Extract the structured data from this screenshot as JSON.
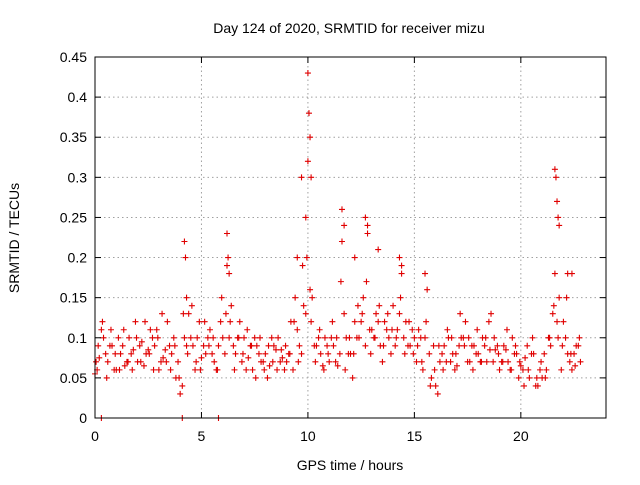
{
  "chart_data": {
    "type": "scatter",
    "title": "Day 124 of 2020, SRMTID for receiver mizu",
    "xlabel": "GPS time / hours",
    "ylabel": "SRMTID / TECUs",
    "xlim": [
      0,
      24
    ],
    "ylim": [
      0,
      0.45
    ],
    "xticks": [
      0,
      5,
      10,
      15,
      20
    ],
    "xtick_labels": [
      "0",
      "5",
      "10",
      "15",
      "20"
    ],
    "yticks": [
      0,
      0.05,
      0.1,
      0.15,
      0.2,
      0.25,
      0.3,
      0.35,
      0.4,
      0.45
    ],
    "ytick_labels": [
      "0",
      "0.05",
      "0.1",
      "0.15",
      "0.2",
      "0.25",
      "0.3",
      "0.35",
      "0.4",
      "0.45"
    ],
    "grid": true,
    "marker": "+",
    "color": "#e00000",
    "series": [
      {
        "name": "SRMTID",
        "x": [
          0.0,
          0.2,
          0.4,
          0.6,
          0.8,
          1.0,
          1.2,
          1.4,
          1.6,
          1.8,
          2.0,
          2.2,
          2.4,
          2.6,
          2.8,
          3.0,
          3.2,
          3.4,
          3.6,
          3.8,
          4.0,
          4.2,
          4.4,
          4.6,
          4.8,
          5.0,
          5.2,
          5.4,
          5.6,
          5.8,
          6.0,
          6.2,
          6.4,
          6.6,
          6.8,
          7.0,
          7.2,
          7.4,
          7.6,
          7.8,
          8.0,
          8.2,
          8.4,
          8.6,
          8.8,
          9.0,
          9.2,
          9.4,
          9.6,
          9.8,
          10.0,
          10.2,
          10.4,
          10.6,
          10.8,
          11.0,
          11.2,
          11.4,
          11.6,
          11.8,
          12.0,
          12.2,
          12.4,
          12.6,
          12.8,
          13.0,
          13.2,
          13.4,
          13.6,
          13.8,
          14.0,
          14.2,
          14.4,
          14.6,
          14.8,
          15.0,
          15.2,
          15.4,
          15.6,
          15.8,
          16.0,
          16.2,
          16.4,
          16.6,
          16.8,
          17.0,
          17.2,
          17.4,
          17.6,
          17.8,
          18.0,
          18.2,
          18.4,
          18.6,
          18.8,
          19.0,
          19.2,
          19.4,
          19.6,
          19.8,
          20.0,
          20.2,
          20.4,
          20.6,
          20.8,
          21.0,
          21.2,
          21.4,
          21.6,
          21.8,
          22.0,
          22.2,
          22.4,
          22.6,
          22.8,
          0.05,
          0.15,
          0.35,
          0.55,
          0.75,
          0.95,
          1.15,
          1.35,
          1.55,
          1.75,
          1.95,
          2.15,
          2.35,
          2.55,
          2.75,
          2.95,
          3.15,
          3.35,
          3.55,
          3.75,
          3.95,
          4.15,
          4.35,
          4.55,
          4.75,
          4.95,
          5.15,
          5.35,
          5.55,
          5.75,
          5.95,
          6.15,
          6.35,
          6.55,
          6.75,
          6.95,
          7.15,
          7.35,
          7.55,
          7.75,
          7.95,
          8.15,
          8.35,
          8.55,
          8.75,
          8.95,
          9.15,
          9.35,
          9.55,
          9.75,
          9.95,
          10.15,
          10.35,
          10.55,
          10.75,
          10.95,
          11.15,
          11.35,
          11.55,
          11.75,
          11.95,
          12.15,
          12.35,
          12.55,
          12.75,
          12.95,
          13.15,
          13.35,
          13.55,
          13.75,
          13.95,
          14.15,
          14.35,
          14.55,
          14.75,
          14.95,
          15.15,
          15.35,
          15.55,
          15.75,
          15.95,
          16.15,
          16.35,
          16.55,
          16.75,
          16.95,
          17.15,
          17.35,
          17.55,
          17.75,
          17.95,
          18.15,
          18.35,
          18.55,
          18.75,
          18.95,
          19.15,
          19.35,
          19.55,
          19.75,
          19.95,
          20.15,
          20.35,
          20.55,
          20.75,
          20.95,
          21.15,
          21.35,
          21.55,
          21.75,
          21.95,
          22.15,
          22.35,
          22.55,
          22.75,
          0.1,
          0.3,
          0.5,
          0.7,
          0.9,
          1.1,
          1.3,
          1.5,
          1.7,
          1.9,
          2.1,
          2.3,
          2.5,
          2.7,
          2.9,
          3.1,
          3.3,
          3.5,
          3.7,
          3.9,
          4.1,
          4.3,
          4.5,
          4.7,
          4.9,
          5.1,
          5.3,
          5.5,
          5.7,
          5.9,
          6.1,
          6.3,
          6.5,
          6.7,
          6.9,
          7.1,
          7.3,
          7.5,
          7.7,
          7.9,
          8.1,
          8.3,
          8.5,
          8.7,
          8.9,
          9.1,
          9.3,
          9.5,
          9.7,
          9.9,
          10.1,
          10.3,
          10.5,
          10.7,
          10.9,
          11.1,
          11.3,
          11.5,
          11.7,
          11.9,
          12.1,
          12.3,
          12.5,
          12.7,
          12.9,
          13.1,
          13.3,
          13.5,
          13.7,
          13.9,
          14.1,
          14.3,
          14.5,
          14.7,
          14.9,
          15.1,
          15.3,
          15.5,
          15.7,
          15.9,
          16.1,
          16.3,
          16.5,
          16.7,
          16.9,
          17.1,
          17.3,
          17.5,
          17.7,
          17.9,
          18.1,
          18.3,
          18.5,
          18.7,
          18.9,
          19.1,
          19.3,
          19.5,
          19.7,
          19.9,
          20.1,
          20.3,
          20.5,
          20.7,
          20.9,
          21.1,
          21.3,
          21.5,
          21.7,
          21.9,
          22.1,
          22.3,
          22.5,
          22.7,
          4.2,
          4.25,
          4.3,
          6.2,
          6.25,
          6.3,
          9.5,
          9.7,
          9.9,
          10.0,
          10.05,
          10.1,
          10.15,
          11.6,
          11.7,
          12.2,
          12.7,
          12.8,
          13.3,
          14.3,
          14.4,
          15.5,
          21.6,
          21.65,
          21.7,
          21.75,
          21.8,
          22.2,
          22.4,
          0.3,
          4.1,
          5.8
        ],
        "y": [
          0.055,
          0.075,
          0.1,
          0.07,
          0.09,
          0.06,
          0.08,
          0.065,
          0.1,
          0.085,
          0.07,
          0.095,
          0.08,
          0.11,
          0.09,
          0.06,
          0.075,
          0.12,
          0.08,
          0.05,
          0.03,
          0.1,
          0.13,
          0.09,
          0.1,
          0.075,
          0.08,
          0.11,
          0.07,
          0.09,
          0.1,
          0.19,
          0.14,
          0.08,
          0.12,
          0.1,
          0.075,
          0.06,
          0.09,
          0.07,
          0.08,
          0.065,
          0.09,
          0.1,
          0.075,
          0.07,
          0.12,
          0.15,
          0.09,
          0.14,
          0.32,
          0.15,
          0.09,
          0.08,
          0.1,
          0.07,
          0.09,
          0.065,
          0.22,
          0.1,
          0.08,
          0.12,
          0.1,
          0.15,
          0.24,
          0.11,
          0.13,
          0.09,
          0.12,
          0.1,
          0.14,
          0.11,
          0.18,
          0.12,
          0.09,
          0.1,
          0.11,
          0.06,
          0.16,
          0.05,
          0.04,
          0.07,
          0.09,
          0.1,
          0.08,
          0.065,
          0.1,
          0.12,
          0.07,
          0.09,
          0.08,
          0.1,
          0.07,
          0.13,
          0.085,
          0.06,
          0.09,
          0.07,
          0.1,
          0.08,
          0.065,
          0.075,
          0.05,
          0.08,
          0.04,
          0.05,
          0.06,
          0.09,
          0.18,
          0.15,
          0.12,
          0.08,
          0.06,
          0.09,
          0.07,
          0.07,
          0.09,
          0.12,
          0.05,
          0.11,
          0.08,
          0.06,
          0.11,
          0.07,
          0.06,
          0.1,
          0.07,
          0.12,
          0.08,
          0.06,
          0.1,
          0.13,
          0.07,
          0.06,
          0.09,
          0.05,
          0.13,
          0.08,
          0.14,
          0.07,
          0.06,
          0.12,
          0.09,
          0.1,
          0.06,
          0.15,
          0.13,
          0.12,
          0.06,
          0.1,
          0.08,
          0.11,
          0.09,
          0.05,
          0.1,
          0.06,
          0.09,
          0.07,
          0.06,
          0.085,
          0.09,
          0.08,
          0.12,
          0.07,
          0.19,
          0.2,
          0.12,
          0.07,
          0.11,
          0.06,
          0.08,
          0.12,
          0.1,
          0.17,
          0.06,
          0.1,
          0.08,
          0.14,
          0.13,
          0.17,
          0.08,
          0.1,
          0.14,
          0.09,
          0.13,
          0.11,
          0.1,
          0.15,
          0.08,
          0.12,
          0.08,
          0.09,
          0.07,
          0.12,
          0.04,
          0.06,
          0.09,
          0.06,
          0.11,
          0.1,
          0.08,
          0.13,
          0.09,
          0.1,
          0.06,
          0.11,
          0.07,
          0.1,
          0.085,
          0.1,
          0.08,
          0.07,
          0.11,
          0.06,
          0.09,
          0.07,
          0.04,
          0.06,
          0.1,
          0.05,
          0.07,
          0.05,
          0.1,
          0.14,
          0.1,
          0.09,
          0.15,
          0.08,
          0.065,
          0.1,
          0.06,
          0.11,
          0.08,
          0.09,
          0.06,
          0.1,
          0.09,
          0.07,
          0.08,
          0.12,
          0.09,
          0.065,
          0.085,
          0.1,
          0.11,
          0.07,
          0.085,
          0.09,
          0.1,
          0.07,
          0.04,
          0.09,
          0.1,
          0.06,
          0.12,
          0.09,
          0.1,
          0.08,
          0.06,
          0.12,
          0.08,
          0.1,
          0.09,
          0.1,
          0.07,
          0.06,
          0.09,
          0.1,
          0.08,
          0.07,
          0.05,
          0.1,
          0.085,
          0.07,
          0.06,
          0.08,
          0.06,
          0.11,
          0.08,
          0.13,
          0.16,
          0.09,
          0.1,
          0.065,
          0.09,
          0.1,
          0.07,
          0.08,
          0.13,
          0.08,
          0.05,
          0.1,
          0.12,
          0.09,
          0.11,
          0.1,
          0.12,
          0.07,
          0.11,
          0.08,
          0.09,
          0.13,
          0.1,
          0.09,
          0.11,
          0.07,
          0.1,
          0.1,
          0.08,
          0.09,
          0.03,
          0.08,
          0.07,
          0.07,
          0.06,
          0.09,
          0.1,
          0.07,
          0.09,
          0.08,
          0.07,
          0.09,
          0.12,
          0.07,
          0.09,
          0.07,
          0.085,
          0.06,
          0.08,
          0.05,
          0.06,
          0.09,
          0.08,
          0.04,
          0.06,
          0.08,
          0.1,
          0.13,
          0.12,
          0.06,
          0.1,
          0.07,
          0.08,
          0.09,
          0.22,
          0.2,
          0.15,
          0.23,
          0.2,
          0.18,
          0.2,
          0.3,
          0.25,
          0.43,
          0.38,
          0.35,
          0.3,
          0.26,
          0.24,
          0.2,
          0.25,
          0.23,
          0.21,
          0.2,
          0.19,
          0.18,
          0.31,
          0.3,
          0.27,
          0.25,
          0.24,
          0.18,
          0.18,
          0.0,
          0.0,
          0.0
        ]
      }
    ]
  }
}
